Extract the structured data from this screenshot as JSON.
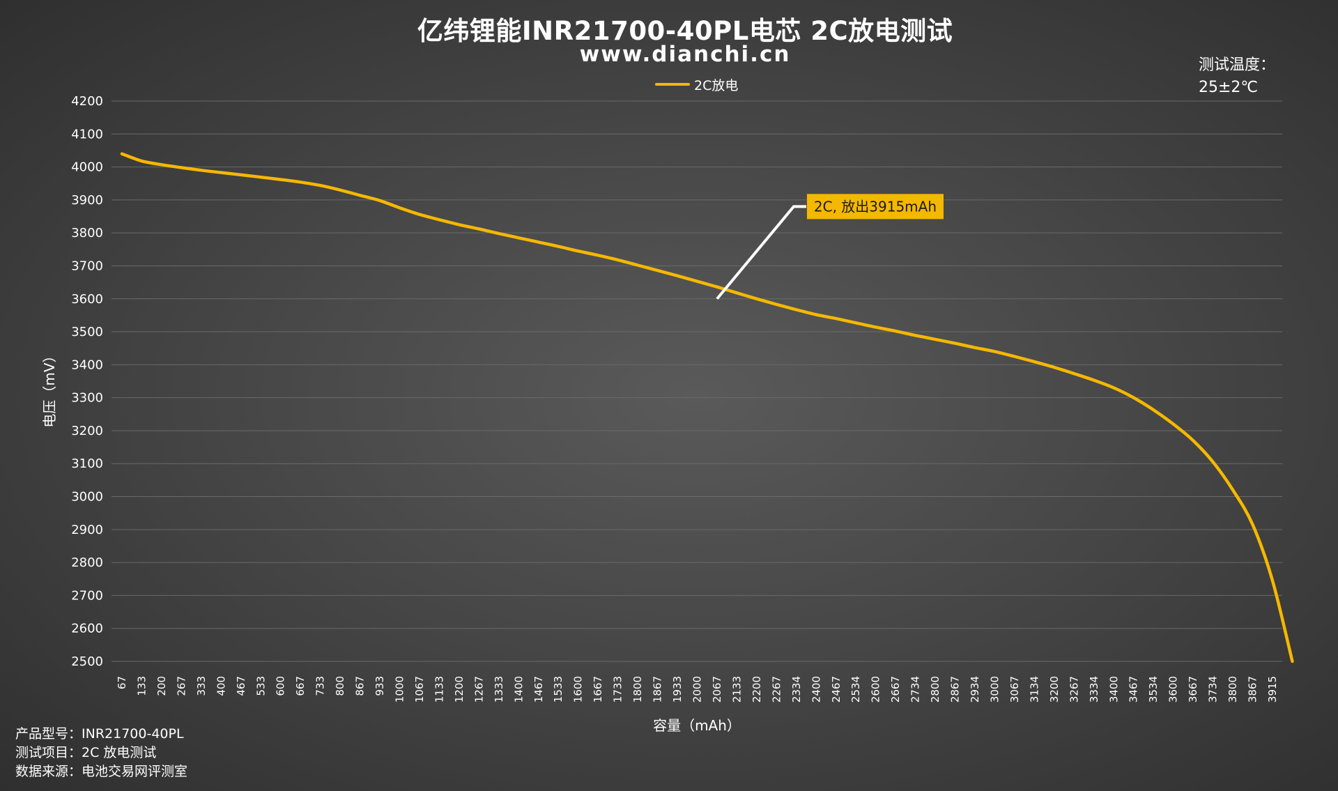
{
  "header": {
    "title": "亿纬锂能INR21700-40PL电芯 2C放电测试",
    "subtitle": "www.dianchi.cn",
    "temp_label": "测试温度：",
    "temp_value": "25±2℃"
  },
  "footer": {
    "line1": "产品型号：INR21700-40PL",
    "line2": "测试项目：2C 放电测试",
    "line3": "数据来源：电池交易网评测室"
  },
  "colors": {
    "series": "#f5b800",
    "callout_bg": "#f5b800",
    "callout_line": "#ffffff",
    "grid": "#6a6a6a"
  },
  "chart_data": {
    "type": "line",
    "title": "亿纬锂能INR21700-40PL电芯 2C放电测试",
    "xlabel": "容量（mAh）",
    "ylabel": "电压（mV）",
    "ylim": [
      2500,
      4200
    ],
    "yticks": [
      2500,
      2600,
      2700,
      2800,
      2900,
      3000,
      3100,
      3200,
      3300,
      3400,
      3500,
      3600,
      3700,
      3800,
      3900,
      4000,
      4100,
      4200
    ],
    "xticks": [
      "67",
      "133",
      "200",
      "267",
      "333",
      "400",
      "467",
      "533",
      "600",
      "667",
      "733",
      "800",
      "867",
      "933",
      "1000",
      "1067",
      "1133",
      "1200",
      "1267",
      "1333",
      "1400",
      "1467",
      "1533",
      "1600",
      "1667",
      "1733",
      "1800",
      "1867",
      "1933",
      "2000",
      "2067",
      "2133",
      "2200",
      "2267",
      "2334",
      "2400",
      "2467",
      "2534",
      "2600",
      "2667",
      "2734",
      "2800",
      "2867",
      "2934",
      "3000",
      "3067",
      "3134",
      "3200",
      "3267",
      "3334",
      "3400",
      "3467",
      "3534",
      "3600",
      "3667",
      "3734",
      "3800",
      "3867",
      "3915"
    ],
    "grid": true,
    "legend": "top-center",
    "series": [
      {
        "name": "2C放电",
        "values": [
          4040,
          4018,
          4007,
          3998,
          3990,
          3983,
          3976,
          3969,
          3962,
          3954,
          3944,
          3930,
          3914,
          3898,
          3876,
          3856,
          3840,
          3825,
          3812,
          3798,
          3785,
          3772,
          3759,
          3745,
          3732,
          3718,
          3702,
          3686,
          3670,
          3653,
          3636,
          3618,
          3600,
          3583,
          3567,
          3552,
          3540,
          3527,
          3514,
          3502,
          3489,
          3477,
          3465,
          3452,
          3440,
          3425,
          3409,
          3392,
          3373,
          3353,
          3330,
          3300,
          3263,
          3220,
          3170,
          3105,
          3020,
          2915,
          2745,
          2500
        ]
      }
    ],
    "annotation": {
      "text": "2C, 放出3915mAh",
      "at_x": "2067",
      "at_y": 3600
    }
  }
}
